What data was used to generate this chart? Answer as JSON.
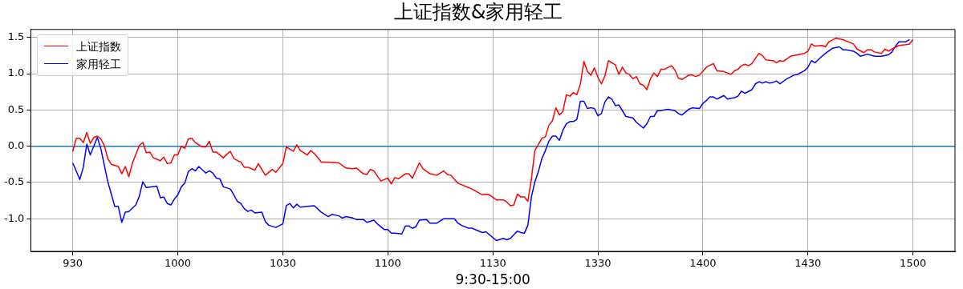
{
  "chart_data": {
    "type": "line",
    "title": "上证指数&家用轻工",
    "xlabel": "9:30-15:00",
    "categories": [
      "930",
      null,
      null,
      null,
      null,
      null,
      null,
      null,
      null,
      null,
      null,
      null,
      null,
      null,
      null,
      null,
      null,
      null,
      null,
      null,
      null,
      null,
      null,
      null,
      null,
      null,
      null,
      null,
      null,
      null,
      "1000",
      null,
      null,
      null,
      null,
      null,
      null,
      null,
      null,
      null,
      null,
      null,
      null,
      null,
      null,
      null,
      null,
      null,
      null,
      null,
      null,
      null,
      null,
      null,
      null,
      null,
      null,
      null,
      null,
      null,
      "1030",
      null,
      null,
      null,
      null,
      null,
      null,
      null,
      null,
      null,
      null,
      null,
      null,
      null,
      null,
      null,
      null,
      null,
      null,
      null,
      null,
      null,
      null,
      null,
      null,
      null,
      null,
      null,
      null,
      null,
      "1100",
      null,
      null,
      null,
      null,
      null,
      null,
      null,
      null,
      null,
      null,
      null,
      null,
      null,
      null,
      null,
      null,
      null,
      null,
      null,
      null,
      null,
      null,
      null,
      null,
      null,
      null,
      null,
      null,
      null,
      "1130",
      null,
      null,
      null,
      null,
      null,
      null,
      null,
      null,
      null,
      null,
      null,
      null,
      null,
      null,
      null,
      null,
      null,
      null,
      null,
      null,
      null,
      null,
      null,
      null,
      null,
      null,
      null,
      null,
      null,
      "1330",
      null,
      null,
      null,
      null,
      null,
      null,
      null,
      null,
      null,
      null,
      null,
      null,
      null,
      null,
      null,
      null,
      null,
      null,
      null,
      null,
      null,
      null,
      null,
      null,
      null,
      null,
      null,
      null,
      null,
      "1400",
      null,
      null,
      null,
      null,
      null,
      null,
      null,
      null,
      null,
      null,
      null,
      null,
      null,
      null,
      null,
      null,
      null,
      null,
      null,
      null,
      null,
      null,
      null,
      null,
      null,
      null,
      null,
      null,
      null,
      "1430",
      null,
      null,
      null,
      null,
      null,
      null,
      null,
      null,
      null,
      null,
      null,
      null,
      null,
      null,
      null,
      null,
      null,
      null,
      null,
      null,
      null,
      null,
      null,
      null,
      null,
      null,
      null,
      null,
      null,
      "1500"
    ],
    "ylim": [
      -1.45,
      1.61
    ],
    "yticks": [
      {
        "value": -1,
        "label": "-1.0"
      },
      -0.5,
      {
        "value": 0,
        "label": "0.0"
      },
      0.5,
      {
        "value": 1,
        "label": "1.0"
      },
      1.5
    ],
    "grid": true,
    "legend": "top left",
    "marker": "none",
    "line_style": "solid",
    "ref_lines": [
      {
        "axis": "y",
        "value": 0,
        "color": "#1f77b4"
      }
    ],
    "series": [
      {
        "name": "上证指数",
        "color": "#ff0000",
        "values": [
          -0.07,
          0.11,
          0.11,
          0.05,
          0.19,
          0.04,
          0.12,
          0.14,
          0.1,
          0.01,
          -0.17,
          -0.25,
          null,
          -0.28,
          -0.38,
          -0.28,
          -0.42,
          -0.24,
          null,
          0.01,
          0.05,
          -0.09,
          -0.08,
          -0.16,
          null,
          -0.2,
          -0.15,
          -0.24,
          -0.23,
          -0.12,
          -0.12,
          0.0,
          -0.03,
          0.1,
          0.11,
          0.05,
          0.02,
          -0.01,
          -0.01,
          0.07,
          -0.08,
          -0.08,
          null,
          -0.16,
          -0.11,
          -0.07,
          -0.17,
          null,
          -0.22,
          -0.29,
          -0.29,
          null,
          -0.33,
          -0.24,
          null,
          -0.4,
          null,
          -0.32,
          -0.36,
          null,
          -0.24,
          -0.01,
          null,
          -0.07,
          0.02,
          -0.06,
          null,
          -0.12,
          -0.06,
          -0.1,
          null,
          -0.22,
          null,
          -0.22,
          null,
          null,
          -0.23,
          null,
          -0.3,
          null,
          -0.31,
          -0.3,
          null,
          -0.38,
          -0.39,
          -0.32,
          -0.34,
          null,
          -0.48,
          null,
          -0.44,
          -0.52,
          -0.43,
          -0.45,
          null,
          -0.38,
          -0.38,
          -0.44,
          null,
          -0.23,
          -0.31,
          null,
          -0.38,
          null,
          -0.4,
          null,
          -0.34,
          -0.39,
          -0.4,
          null,
          -0.51,
          -0.53,
          null,
          -0.57,
          -0.59,
          null,
          null,
          -0.67,
          -0.66,
          -0.67,
          null,
          -0.74,
          null,
          -0.74,
          -0.77,
          -0.82,
          -0.81,
          -0.66,
          -0.7,
          -0.7,
          -0.76,
          -0.45,
          -0.06,
          null,
          0.11,
          0.13,
          0.29,
          0.35,
          0.53,
          0.43,
          0.48,
          0.71,
          0.69,
          0.74,
          0.71,
          0.86,
          1.17,
          1.03,
          0.98,
          1.08,
          0.95,
          0.86,
          0.97,
          1.18,
          1.15,
          1.12,
          0.99,
          1.09,
          1.01,
          0.99,
          0.93,
          0.96,
          0.86,
          0.84,
          0.78,
          0.93,
          1.01,
          0.96,
          1.06,
          1.06,
          null,
          1.11,
          1.05,
          0.94,
          0.92,
          null,
          0.98,
          0.98,
          0.96,
          0.98,
          null,
          1.09,
          null,
          1.14,
          1.04,
          null,
          1.03,
          null,
          0.99,
          1.04,
          1.06,
          1.11,
          1.13,
          1.11,
          1.14,
          null,
          1.28,
          1.25,
          1.19,
          null,
          1.18,
          1.15,
          1.18,
          1.17,
          null,
          1.24,
          null,
          1.26,
          null,
          1.28,
          1.31,
          1.41,
          1.38,
          null,
          1.39,
          1.37,
          1.44,
          null,
          1.49,
          null,
          1.47,
          null,
          1.43,
          1.41,
          1.34,
          null,
          1.29,
          1.33,
          1.33,
          1.3,
          null,
          1.28,
          1.34,
          1.31,
          1.34,
          null,
          1.39,
          null,
          1.4,
          1.41,
          1.47
        ]
      },
      {
        "name": "家用轻工",
        "color": "#0000ff",
        "values": [
          -0.23,
          null,
          -0.46,
          -0.29,
          0.03,
          -0.12,
          null,
          0.12,
          -0.03,
          null,
          -0.49,
          null,
          -0.83,
          -0.83,
          -1.05,
          -0.91,
          -0.9,
          null,
          -0.81,
          -0.69,
          -0.49,
          -0.57,
          null,
          null,
          -0.55,
          -0.71,
          -0.7,
          -0.79,
          -0.81,
          -0.73,
          -0.67,
          -0.56,
          -0.51,
          -0.35,
          -0.31,
          -0.34,
          -0.28,
          null,
          -0.37,
          -0.34,
          -0.37,
          -0.44,
          -0.45,
          -0.56,
          null,
          -0.59,
          -0.67,
          -0.76,
          -0.79,
          -0.86,
          -0.9,
          -0.88,
          -0.92,
          null,
          -0.91,
          -1.04,
          -1.09,
          null,
          -1.12,
          null,
          -1.07,
          -0.82,
          -0.79,
          -0.85,
          -0.8,
          -0.84,
          null,
          -0.83,
          null,
          -0.82,
          null,
          -0.91,
          null,
          -0.97,
          -0.94,
          null,
          -0.96,
          -0.99,
          -0.97,
          null,
          -0.99,
          -1.01,
          null,
          -1.01,
          -1.05,
          null,
          -1.02,
          -1.07,
          null,
          -1.15,
          -1.15,
          -1.2,
          -1.2,
          null,
          -1.21,
          -1.1,
          -1.1,
          -1.13,
          -1.11,
          -1.02,
          null,
          -1.01,
          -1.06,
          null,
          -1.06,
          null,
          -1.0,
          null,
          null,
          -1.0,
          -1.06,
          -1.09,
          null,
          -1.13,
          -1.13,
          null,
          null,
          -1.19,
          -1.18,
          -1.22,
          -1.26,
          -1.3,
          null,
          -1.27,
          -1.29,
          -1.27,
          -1.22,
          -1.17,
          -1.19,
          -1.2,
          -1.09,
          -0.7,
          -0.49,
          -0.35,
          -0.17,
          -0.06,
          0.07,
          0.14,
          0.14,
          0.08,
          0.22,
          0.31,
          0.34,
          0.34,
          0.37,
          0.62,
          0.62,
          0.52,
          0.53,
          0.52,
          0.42,
          0.45,
          0.61,
          0.68,
          0.65,
          0.56,
          0.57,
          0.49,
          0.41,
          null,
          0.39,
          0.33,
          null,
          0.25,
          0.31,
          0.41,
          0.41,
          0.49,
          0.49,
          0.5,
          0.51,
          null,
          0.49,
          0.45,
          0.43,
          0.47,
          0.51,
          0.53,
          null,
          0.52,
          0.59,
          0.63,
          0.68,
          0.68,
          0.65,
          null,
          0.7,
          0.65,
          0.66,
          0.67,
          0.69,
          0.76,
          0.73,
          null,
          0.78,
          0.86,
          0.89,
          0.87,
          0.89,
          0.87,
          0.88,
          0.9,
          0.86,
          null,
          0.93,
          null,
          0.98,
          0.99,
          null,
          1.04,
          1.09,
          1.18,
          1.15,
          null,
          1.24,
          1.28,
          null,
          1.35,
          null,
          1.37,
          1.33,
          1.33,
          null,
          1.31,
          1.28,
          1.24,
          null,
          1.27,
          null,
          1.24,
          null,
          1.24,
          null,
          1.26,
          1.3,
          1.38,
          1.44,
          null,
          1.44,
          1.47,
          null
        ]
      }
    ]
  }
}
